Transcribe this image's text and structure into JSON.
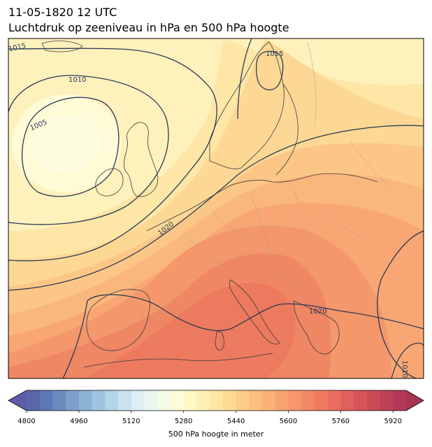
{
  "header": {
    "datetime": "11-05-1820 12 UTC",
    "subtitle": "Luchtdruk op zeeniveau in hPa en 500 hPa hoogte"
  },
  "map": {
    "region": "Europe and North Atlantic",
    "fill_variable": "500 hPa geopotential height",
    "contour_variable": "mean sea level pressure (hPa)",
    "isobar_labels": [
      "1015",
      "1010",
      "1005",
      "1015",
      "1020",
      "1020",
      "1010"
    ],
    "low_pressure_area": "west of Ireland (~1005 hPa)",
    "high_pressure_area": "southern Europe / Mediterranean (>1020 hPa)"
  },
  "colorbar": {
    "label": "500 hPa hoogte in meter",
    "ticks": [
      "4800",
      "4960",
      "5120",
      "5280",
      "5440",
      "5600",
      "5760",
      "5920"
    ],
    "min": 4800,
    "max": 5960,
    "step": 40,
    "colormap": "RdYlBu_r (reversed red-yellow-blue)",
    "extend": "both"
  },
  "colors": {
    "isobar": "#2b3a55",
    "coastline": "#333333",
    "border": "#999999"
  }
}
